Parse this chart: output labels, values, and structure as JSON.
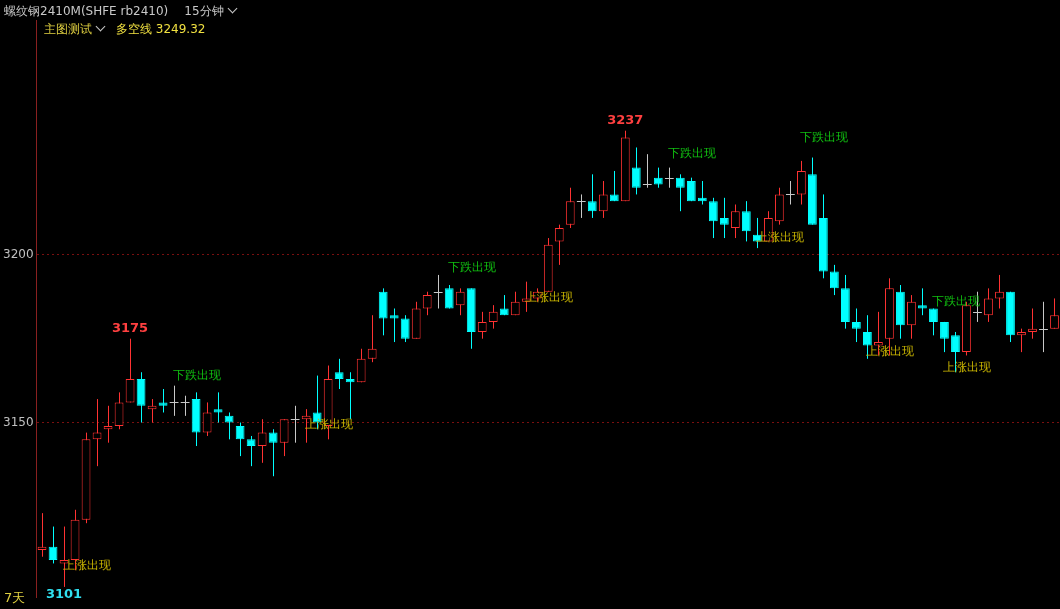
{
  "chart_data": {
    "type": "candlestick",
    "title": "螺纹钢2410M(SHFE rb2410)",
    "subtitle": "15分钟",
    "annotations": [
      "主图测试",
      "多空线 3249.32",
      "7天"
    ],
    "categories": [
      null,
      null,
      null,
      null,
      null,
      null,
      null,
      null,
      null,
      null,
      null,
      null,
      null,
      null,
      null,
      null,
      null,
      null,
      null,
      null,
      null,
      null,
      null,
      null,
      null,
      null,
      null,
      null,
      null,
      null,
      null,
      null,
      null,
      null,
      null,
      null,
      null,
      null,
      null,
      null,
      null,
      null,
      null,
      null,
      null,
      null,
      null,
      null,
      null,
      null,
      null,
      null,
      null,
      null,
      null,
      null,
      null,
      null,
      null,
      null,
      null,
      null,
      null,
      null,
      null,
      null,
      null,
      null,
      null,
      null,
      null,
      null,
      null,
      null,
      null,
      null,
      null,
      null,
      null,
      null,
      null,
      null,
      null,
      null,
      null,
      null,
      null,
      null,
      null,
      null,
      null,
      null,
      null
    ],
    "ohlc": [
      [
        3112,
        3123,
        3110,
        3113
      ],
      [
        3113,
        3119,
        3108,
        3109
      ],
      [
        3108,
        3119,
        3101,
        3109
      ],
      [
        3109,
        3124,
        3106,
        3121
      ],
      [
        3121,
        3147,
        3120,
        3145
      ],
      [
        3145,
        3157,
        3137,
        3147
      ],
      [
        3148,
        3155,
        3144,
        3149
      ],
      [
        3149,
        3159,
        3148,
        3156
      ],
      [
        3156,
        3175,
        3156,
        3163
      ],
      [
        3163,
        3165,
        3150,
        3155
      ],
      [
        3154,
        3157,
        3150,
        3155
      ],
      [
        3156,
        3160,
        3153,
        3155
      ],
      [
        3156,
        3161,
        3152,
        3156
      ],
      [
        3156,
        3158,
        3152,
        3156
      ],
      [
        3157,
        3159,
        3143,
        3147
      ],
      [
        3147,
        3156,
        3146,
        3153
      ],
      [
        3154,
        3159,
        3150,
        3153
      ],
      [
        3152,
        3153,
        3145,
        3150
      ],
      [
        3149,
        3150,
        3140,
        3145
      ],
      [
        3145,
        3146,
        3137,
        3143
      ],
      [
        3143,
        3151,
        3138,
        3147
      ],
      [
        3147,
        3148,
        3134,
        3144
      ],
      [
        3144,
        3151,
        3140,
        3151
      ],
      [
        3151,
        3155,
        3144,
        3151
      ],
      [
        3151,
        3154,
        3144,
        3152
      ],
      [
        3153,
        3164,
        3148,
        3150
      ],
      [
        3149,
        3167,
        3145,
        3163
      ],
      [
        3165,
        3169,
        3160,
        3163
      ],
      [
        3163,
        3165,
        3151,
        3162
      ],
      [
        3162,
        3172,
        3162,
        3169
      ],
      [
        3169,
        3182,
        3168,
        3172
      ],
      [
        3189,
        3190,
        3176,
        3181
      ],
      [
        3182,
        3184,
        3174,
        3181
      ],
      [
        3181,
        3182,
        3174,
        3175
      ],
      [
        3175,
        3186,
        3175,
        3184
      ],
      [
        3184,
        3189,
        3182,
        3188
      ],
      [
        3189,
        3194,
        3184,
        3189
      ],
      [
        3190,
        3191,
        3184,
        3184
      ],
      [
        3185,
        3190,
        3182,
        3189
      ],
      [
        3190,
        3190,
        3172,
        3177
      ],
      [
        3177,
        3183,
        3175,
        3180
      ],
      [
        3180,
        3185,
        3178,
        3183
      ],
      [
        3184,
        3188,
        3182,
        3182
      ],
      [
        3182,
        3189,
        3182,
        3186
      ],
      [
        3186,
        3192,
        3183,
        3187
      ],
      [
        3187,
        3190,
        3186,
        3189
      ],
      [
        3189,
        3205,
        3189,
        3203
      ],
      [
        3204,
        3209,
        3197,
        3208
      ],
      [
        3209,
        3220,
        3208,
        3216
      ],
      [
        3216,
        3218,
        3211,
        3216
      ],
      [
        3216,
        3224,
        3211,
        3213
      ],
      [
        3213,
        3222,
        3211,
        3218
      ],
      [
        3218,
        3225,
        3216,
        3216
      ],
      [
        3216,
        3237,
        3216,
        3235
      ],
      [
        3226,
        3232,
        3218,
        3220
      ],
      [
        3221,
        3230,
        3220,
        3221
      ],
      [
        3223,
        3226,
        3220,
        3221
      ],
      [
        3223,
        3226,
        3220,
        3223
      ],
      [
        3223,
        3224,
        3213,
        3220
      ],
      [
        3222,
        3223,
        3216,
        3216
      ],
      [
        3217,
        3222,
        3215,
        3216
      ],
      [
        3216,
        3217,
        3205,
        3210
      ],
      [
        3211,
        3217,
        3205,
        3209
      ],
      [
        3208,
        3215,
        3205,
        3213
      ],
      [
        3213,
        3216,
        3204,
        3207
      ],
      [
        3206,
        3211,
        3202,
        3204
      ],
      [
        3204,
        3213,
        3204,
        3211
      ],
      [
        3210,
        3220,
        3209,
        3218
      ],
      [
        3218,
        3222,
        3215,
        3218
      ],
      [
        3218,
        3228,
        3215,
        3225
      ],
      [
        3224,
        3229,
        3209,
        3209
      ],
      [
        3211,
        3218,
        3193,
        3195
      ],
      [
        3195,
        3197,
        3188,
        3190
      ],
      [
        3190,
        3194,
        3178,
        3180
      ],
      [
        3180,
        3184,
        3174,
        3178
      ],
      [
        3177,
        3182,
        3169,
        3173
      ],
      [
        3173,
        3183,
        3170,
        3174
      ],
      [
        3175,
        3193,
        3170,
        3190
      ],
      [
        3189,
        3191,
        3175,
        3179
      ],
      [
        3179,
        3188,
        3175,
        3186
      ],
      [
        3185,
        3190,
        3182,
        3184
      ],
      [
        3184,
        3184,
        3176,
        3180
      ],
      [
        3180,
        3180,
        3171,
        3175
      ],
      [
        3176,
        3177,
        3165,
        3171
      ],
      [
        3171,
        3186,
        3170,
        3185
      ],
      [
        3183,
        3189,
        3180,
        3183
      ],
      [
        3182,
        3190,
        3180,
        3187
      ],
      [
        3187,
        3194,
        3184,
        3189
      ],
      [
        3189,
        3189,
        3174,
        3176
      ],
      [
        3176,
        3178,
        3171,
        3177
      ],
      [
        3177,
        3184,
        3175,
        3178
      ],
      [
        3178,
        3186,
        3171,
        3178
      ],
      [
        3178,
        3187,
        3178,
        3182
      ]
    ],
    "colors": [
      "#ff3232",
      "#00ffff",
      "#ff3232",
      "#ff3232",
      "#ff3232",
      "#ff3232",
      "#ff3232",
      "#ff3232",
      "#ff3232",
      "#00ffff",
      "#ff3232",
      "#00ffff",
      "#c8c8c8",
      "#c8c8c8",
      "#00ffff",
      "#ff3232",
      "#00ffff",
      "#00ffff",
      "#00ffff",
      "#00ffff",
      "#ff3232",
      "#00ffff",
      "#ff3232",
      "#c8c8c8",
      "#ff3232",
      "#00ffff",
      "#ff3232",
      "#00ffff",
      "#00ffff",
      "#ff3232",
      "#ff3232",
      "#00ffff",
      "#00ffff",
      "#00ffff",
      "#ff3232",
      "#ff3232",
      "#c8c8c8",
      "#00ffff",
      "#ff3232",
      "#00ffff",
      "#ff3232",
      "#ff3232",
      "#00ffff",
      "#ff3232",
      "#ff3232",
      "#ff3232",
      "#ff3232",
      "#ff3232",
      "#ff3232",
      "#c8c8c8",
      "#00ffff",
      "#ff3232",
      "#00ffff",
      "#ff3232",
      "#00ffff",
      "#c8c8c8",
      "#00ffff",
      "#c8c8c8",
      "#00ffff",
      "#00ffff",
      "#00ffff",
      "#00ffff",
      "#00ffff",
      "#ff3232",
      "#00ffff",
      "#00ffff",
      "#ff3232",
      "#ff3232",
      "#c8c8c8",
      "#ff3232",
      "#00ffff",
      "#00ffff",
      "#00ffff",
      "#00ffff",
      "#00ffff",
      "#00ffff",
      "#ff3232",
      "#ff3232",
      "#00ffff",
      "#ff3232",
      "#00ffff",
      "#00ffff",
      "#00ffff",
      "#00ffff",
      "#ff3232",
      "#c8c8c8",
      "#ff3232",
      "#ff3232",
      "#00ffff",
      "#ff3232",
      "#ff3232",
      "#c8c8c8",
      "#ff3232"
    ],
    "value_labels": [
      null,
      null,
      "3101",
      "上涨出现",
      null,
      null,
      null,
      null,
      "3175",
      null,
      null,
      null,
      null,
      "下跌出现",
      null,
      null,
      null,
      null,
      null,
      null,
      null,
      null,
      null,
      null,
      null,
      "上涨出现",
      null,
      null,
      null,
      null,
      null,
      null,
      null,
      null,
      null,
      null,
      null,
      null,
      "下跌出现",
      null,
      null,
      null,
      null,
      null,
      null,
      "上涨出现",
      null,
      null,
      null,
      null,
      null,
      null,
      null,
      "3237",
      null,
      null,
      null,
      null,
      "下跌出现",
      null,
      null,
      null,
      null,
      null,
      null,
      null,
      "上涨出现",
      null,
      null,
      null,
      "下跌出现",
      null,
      null,
      null,
      null,
      null,
      "上涨出现",
      null,
      null,
      null,
      null,
      null,
      "下跌出现",
      "上涨出现",
      null,
      null,
      null,
      null,
      null,
      null,
      null,
      null,
      null
    ],
    "ylim": [
      3098,
      3270
    ],
    "yticks": [
      3150,
      3200
    ],
    "grid": "y",
    "tick_labels": "y"
  }
}
